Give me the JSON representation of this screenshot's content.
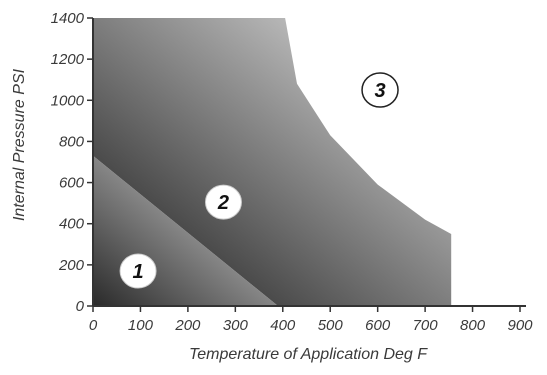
{
  "chart_data": {
    "type": "area",
    "xlabel": "Temperature of Application Deg F",
    "ylabel": "Internal Pressure PSI",
    "xlim": [
      0,
      900
    ],
    "ylim": [
      0,
      1400
    ],
    "xticks": [
      0,
      100,
      200,
      300,
      400,
      500,
      600,
      700,
      800,
      900
    ],
    "yticks": [
      0,
      200,
      400,
      600,
      800,
      1000,
      1200,
      1400
    ],
    "grid": false,
    "legend": "none",
    "zones": [
      {
        "name": "1",
        "boundary": [
          [
            0,
            0
          ],
          [
            0,
            730
          ],
          [
            390,
            0
          ]
        ],
        "label_position": [
          95,
          170
        ],
        "color_dark": "#2a2a2a",
        "color_light": "#e2e2e2"
      },
      {
        "name": "2",
        "boundary": [
          [
            0,
            730
          ],
          [
            0,
            1400
          ],
          [
            405,
            1400
          ],
          [
            430,
            1080
          ],
          [
            500,
            830
          ],
          [
            600,
            590
          ],
          [
            700,
            420
          ],
          [
            755,
            350
          ],
          [
            755,
            0
          ],
          [
            390,
            0
          ]
        ],
        "label_position": [
          275,
          505
        ],
        "color_dark": "#3a3a3a",
        "color_light": "#e8e8e8"
      },
      {
        "name": "3",
        "label_position": [
          605,
          1050
        ],
        "region": "outside"
      }
    ]
  }
}
